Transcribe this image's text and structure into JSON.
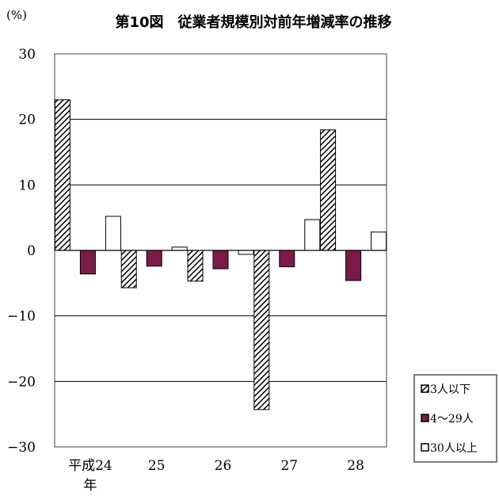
{
  "chart_data": {
    "type": "bar",
    "title": "第10図　従業者規模別対前年増減率の推移",
    "unit_label": "(%)",
    "categories": [
      [
        "平成24",
        "年"
      ],
      [
        "25"
      ],
      [
        "26"
      ],
      [
        "27"
      ],
      [
        "28"
      ]
    ],
    "series": [
      {
        "name": "3人以下",
        "values": [
          23.0,
          -5.7,
          -4.7,
          -24.3,
          18.4
        ],
        "fill": "hatch",
        "color": "#000000"
      },
      {
        "name": "4～29人",
        "values": [
          -3.6,
          -2.4,
          -2.8,
          -2.5,
          -4.6
        ],
        "fill": "solid",
        "color": "#7a1a4a"
      },
      {
        "name": "30人以上",
        "values": [
          5.2,
          0.5,
          -0.6,
          4.7,
          2.8
        ],
        "fill": "solid",
        "color": "#ffffff"
      }
    ],
    "ylim": [
      -30,
      30
    ],
    "yticks": [
      30,
      20,
      10,
      0,
      -10,
      -20,
      -30
    ],
    "ytick_labels": [
      "30",
      "20",
      "10",
      "0",
      "−10",
      "−20",
      "−30"
    ],
    "grid": true,
    "legend_position": "bottom-right"
  }
}
